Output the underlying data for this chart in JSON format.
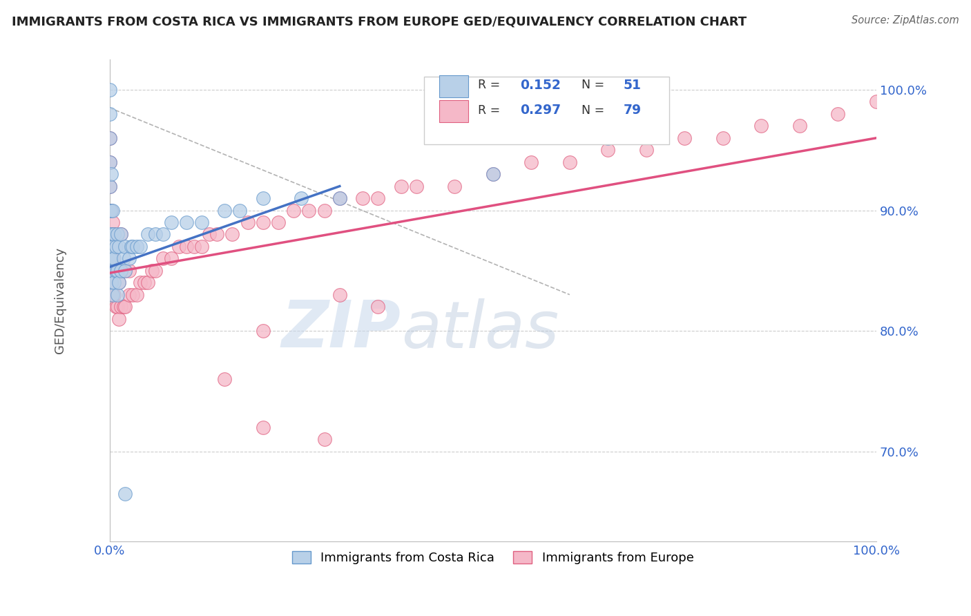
{
  "title": "IMMIGRANTS FROM COSTA RICA VS IMMIGRANTS FROM EUROPE GED/EQUIVALENCY CORRELATION CHART",
  "source": "Source: ZipAtlas.com",
  "ylabel": "GED/Equivalency",
  "xlim": [
    0.0,
    1.0
  ],
  "ylim": [
    0.625,
    1.025
  ],
  "y_tick_values": [
    0.7,
    0.8,
    0.9,
    1.0
  ],
  "y_tick_labels": [
    "70.0%",
    "80.0%",
    "90.0%",
    "100.0%"
  ],
  "x_tick_labels": [
    "0.0%",
    "100.0%"
  ],
  "watermark_zip": "ZIP",
  "watermark_atlas": "atlas",
  "color_blue_fill": "#b8d0e8",
  "color_blue_edge": "#6699cc",
  "color_pink_fill": "#f5b8c8",
  "color_pink_edge": "#e06080",
  "color_blue_line": "#4472c4",
  "color_pink_line": "#e05080",
  "color_dashed": "#aaaaaa",
  "color_grid": "#cccccc",
  "color_tick": "#3366cc",
  "costa_rica_x": [
    0.0,
    0.0,
    0.0,
    0.0,
    0.0,
    0.0,
    0.0,
    0.0,
    0.002,
    0.002,
    0.002,
    0.002,
    0.002,
    0.004,
    0.004,
    0.004,
    0.004,
    0.006,
    0.006,
    0.006,
    0.008,
    0.008,
    0.01,
    0.01,
    0.01,
    0.012,
    0.012,
    0.015,
    0.015,
    0.018,
    0.02,
    0.02,
    0.025,
    0.028,
    0.03,
    0.035,
    0.04,
    0.05,
    0.06,
    0.07,
    0.08,
    0.1,
    0.12,
    0.15,
    0.17,
    0.2,
    0.25,
    0.3,
    0.02,
    0.65,
    0.5
  ],
  "costa_rica_y": [
    0.86,
    0.88,
    0.9,
    0.92,
    0.94,
    0.96,
    0.98,
    1.0,
    0.84,
    0.86,
    0.88,
    0.9,
    0.93,
    0.83,
    0.85,
    0.87,
    0.9,
    0.84,
    0.86,
    0.88,
    0.85,
    0.87,
    0.83,
    0.85,
    0.88,
    0.84,
    0.87,
    0.85,
    0.88,
    0.86,
    0.85,
    0.87,
    0.86,
    0.87,
    0.87,
    0.87,
    0.87,
    0.88,
    0.88,
    0.88,
    0.89,
    0.89,
    0.89,
    0.9,
    0.9,
    0.91,
    0.91,
    0.91,
    0.665,
    0.96,
    0.93
  ],
  "europe_x": [
    0.0,
    0.0,
    0.0,
    0.0,
    0.0,
    0.0,
    0.002,
    0.002,
    0.002,
    0.002,
    0.004,
    0.004,
    0.004,
    0.006,
    0.006,
    0.006,
    0.008,
    0.008,
    0.01,
    0.01,
    0.012,
    0.012,
    0.015,
    0.015,
    0.015,
    0.018,
    0.02,
    0.02,
    0.025,
    0.025,
    0.03,
    0.035,
    0.04,
    0.045,
    0.05,
    0.055,
    0.06,
    0.07,
    0.08,
    0.09,
    0.1,
    0.11,
    0.12,
    0.13,
    0.14,
    0.16,
    0.18,
    0.2,
    0.22,
    0.24,
    0.26,
    0.28,
    0.3,
    0.33,
    0.35,
    0.38,
    0.4,
    0.45,
    0.5,
    0.55,
    0.6,
    0.65,
    0.7,
    0.75,
    0.8,
    0.85,
    0.9,
    0.95,
    1.0,
    0.15,
    0.2,
    0.3,
    0.35,
    0.2,
    0.28
  ],
  "europe_y": [
    0.86,
    0.88,
    0.9,
    0.92,
    0.94,
    0.96,
    0.84,
    0.86,
    0.88,
    0.9,
    0.83,
    0.86,
    0.89,
    0.83,
    0.85,
    0.88,
    0.82,
    0.85,
    0.82,
    0.85,
    0.81,
    0.84,
    0.82,
    0.85,
    0.88,
    0.82,
    0.82,
    0.85,
    0.83,
    0.85,
    0.83,
    0.83,
    0.84,
    0.84,
    0.84,
    0.85,
    0.85,
    0.86,
    0.86,
    0.87,
    0.87,
    0.87,
    0.87,
    0.88,
    0.88,
    0.88,
    0.89,
    0.89,
    0.89,
    0.9,
    0.9,
    0.9,
    0.91,
    0.91,
    0.91,
    0.92,
    0.92,
    0.92,
    0.93,
    0.94,
    0.94,
    0.95,
    0.95,
    0.96,
    0.96,
    0.97,
    0.97,
    0.98,
    0.99,
    0.76,
    0.8,
    0.83,
    0.82,
    0.72,
    0.71
  ],
  "blue_line_x": [
    0.0,
    0.3
  ],
  "blue_line_y": [
    0.853,
    0.92
  ],
  "pink_line_x": [
    0.0,
    1.0
  ],
  "pink_line_y": [
    0.848,
    0.96
  ],
  "dash_line_x": [
    0.0,
    0.6
  ],
  "dash_line_y": [
    0.985,
    0.83
  ]
}
